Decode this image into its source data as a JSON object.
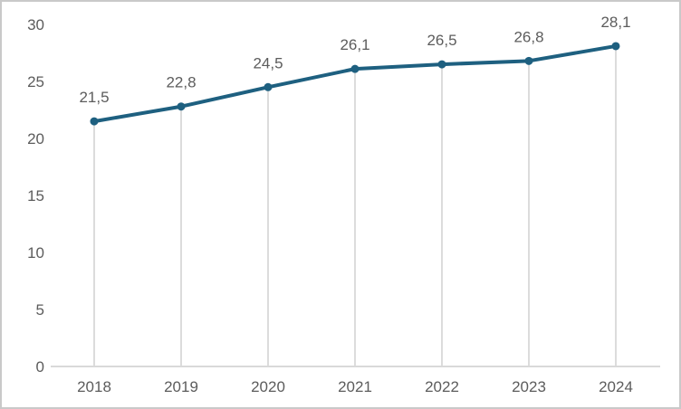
{
  "chart_data": {
    "type": "line",
    "title": "",
    "xlabel": "",
    "ylabel": "",
    "categories": [
      "2018",
      "2019",
      "2020",
      "2021",
      "2022",
      "2023",
      "2024"
    ],
    "values": [
      21.5,
      22.8,
      24.5,
      26.1,
      26.5,
      26.8,
      28.1
    ],
    "value_labels": [
      "21,5",
      "22,8",
      "24,5",
      "26,1",
      "26,5",
      "26,8",
      "28,1"
    ],
    "y_ticks": [
      0,
      5,
      10,
      15,
      20,
      25,
      30
    ],
    "ylim": [
      0,
      30
    ],
    "legend": "none",
    "gridlines": "vertical drop line from each data point down to the x-axis; no horizontal gridlines; no y-axis line",
    "colors": {
      "line": "#1E6080",
      "marker": "#1E6080",
      "text": "#5c5c5c",
      "axis": "#d9d9d9",
      "drop_line": "#dcdcdc",
      "background": "#ffffff",
      "border": "#c9c9c9"
    }
  }
}
